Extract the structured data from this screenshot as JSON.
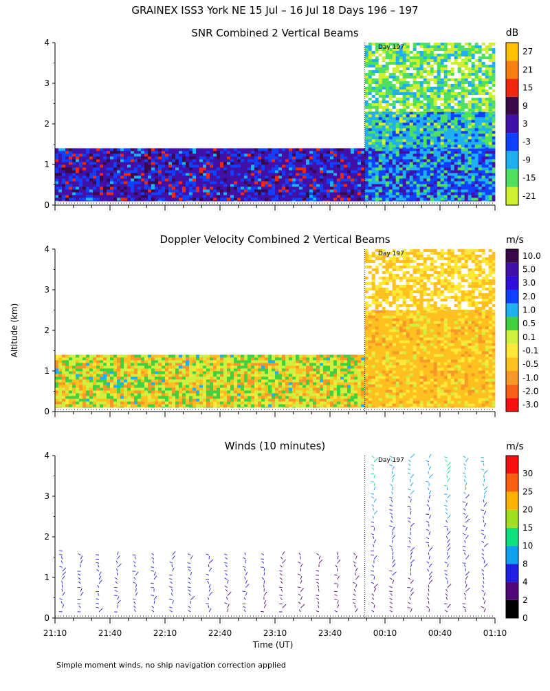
{
  "page": {
    "title": "GRAINEX ISS3 York NE  15 Jul – 16 Jul 18 Days 196 – 197",
    "ylabel": "Altitude (km)",
    "xlabel": "Time (UT)",
    "footnote": "Simple moment winds, no ship navigation correction applied",
    "day_marker": "Day 197"
  },
  "chart_data": [
    {
      "type": "heatmap",
      "title": "SNR Combined 2 Vertical Beams",
      "ylim": [
        0,
        4
      ],
      "yticks": [
        "0",
        "1",
        "2",
        "3",
        "4"
      ],
      "xticks": [],
      "colorbar": {
        "unit": "dB",
        "labels": [
          "-21",
          "-15",
          "-9",
          "-3",
          "3",
          "9",
          "15",
          "21",
          "27"
        ],
        "colors": [
          "#cff030",
          "#50e060",
          "#20b0f0",
          "#1040ff",
          "#4010a8",
          "#380848",
          "#f02810",
          "#f88010",
          "#ffc000"
        ]
      },
      "regions": [
        {
          "x_from": "21:10",
          "x_to": "23:59",
          "alt_from": 0.1,
          "alt_to": 1.4,
          "mix": {
            "#4010a8": 0.5,
            "#1040ff": 0.25,
            "#380848": 0.12,
            "#f02810": 0.08,
            "#20b0f0": 0.05
          }
        },
        {
          "x_from": "23:59",
          "x_to": "01:10",
          "alt_from": 0.1,
          "alt_to": 1.4,
          "mix": {
            "#1040ff": 0.35,
            "#20b0f0": 0.3,
            "#4010a8": 0.2,
            "#50e060": 0.15
          }
        },
        {
          "x_from": "23:59",
          "x_to": "01:10",
          "alt_from": 1.4,
          "alt_to": 2.3,
          "mix": {
            "#20b0f0": 0.45,
            "#50e060": 0.25,
            "#1040ff": 0.2,
            "#cff030": 0.1
          }
        },
        {
          "x_from": "23:59",
          "x_to": "01:10",
          "alt_from": 2.3,
          "alt_to": 4.0,
          "mix": {
            "#50e060": 0.35,
            "#cff030": 0.3,
            "#20b0f0": 0.15,
            "#ffffff": 0.2
          }
        }
      ]
    },
    {
      "type": "heatmap",
      "title": "Doppler Velocity Combined 2 Vertical Beams",
      "ylim": [
        0,
        4
      ],
      "yticks": [
        "0",
        "1",
        "2",
        "3",
        "4"
      ],
      "xticks": [],
      "colorbar": {
        "unit": "m/s",
        "labels": [
          "-3.0",
          "-2.0",
          "-1.0",
          "-0.5",
          "-0.1",
          "0.1",
          "0.5",
          "1.0",
          "2.0",
          "3.0",
          "5.0",
          "10.0"
        ],
        "colors": [
          "#f81010",
          "#f86018",
          "#f89828",
          "#ffc020",
          "#ffe838",
          "#d0f040",
          "#40d040",
          "#20b0f0",
          "#1040ff",
          "#3010d8",
          "#4010a8",
          "#380848"
        ]
      },
      "regions": [
        {
          "x_from": "21:10",
          "x_to": "23:59",
          "alt_from": 0.1,
          "alt_to": 1.4,
          "mix": {
            "#d0f040": 0.3,
            "#ffc020": 0.25,
            "#40d040": 0.2,
            "#f89828": 0.15,
            "#ffe838": 0.07,
            "#20b0f0": 0.03
          }
        },
        {
          "x_from": "23:59",
          "x_to": "01:10",
          "alt_from": 0.1,
          "alt_to": 2.5,
          "mix": {
            "#ffc020": 0.6,
            "#ffe838": 0.2,
            "#f89828": 0.12,
            "#d0f040": 0.08
          }
        },
        {
          "x_from": "23:59",
          "x_to": "01:10",
          "alt_from": 2.5,
          "alt_to": 4.0,
          "mix": {
            "#ffc020": 0.4,
            "#ffe838": 0.3,
            "#ffffff": 0.3
          }
        }
      ]
    },
    {
      "type": "wind-barbs",
      "title": "Winds (10 minutes)",
      "ylim": [
        0,
        4
      ],
      "yticks": [
        "0",
        "1",
        "2",
        "3",
        "4"
      ],
      "xticks": [
        "21:10",
        "21:40",
        "22:10",
        "22:40",
        "23:10",
        "23:40",
        "00:10",
        "00:40",
        "01:10"
      ],
      "colorbar": {
        "unit": "m/s",
        "labels": [
          "0",
          "2",
          "4",
          "8",
          "10",
          "15",
          "20",
          "25",
          "30"
        ],
        "colors": [
          "#000000",
          "#500878",
          "#2020e0",
          "#10a0f0",
          "#10e080",
          "#a0e020",
          "#ffb000",
          "#f86010",
          "#f81010"
        ]
      },
      "profiles": [
        {
          "time": "21:14",
          "top": 1.7,
          "speed_low": 5,
          "speed_high": 5
        },
        {
          "time": "21:24",
          "top": 1.6,
          "speed_low": 4,
          "speed_high": 5
        },
        {
          "time": "21:34",
          "top": 1.6,
          "speed_low": 5,
          "speed_high": 5
        },
        {
          "time": "21:44",
          "top": 1.6,
          "speed_low": 4,
          "speed_high": 5
        },
        {
          "time": "21:54",
          "top": 1.6,
          "speed_low": 4,
          "speed_high": 5
        },
        {
          "time": "22:04",
          "top": 1.6,
          "speed_low": 5,
          "speed_high": 5
        },
        {
          "time": "22:14",
          "top": 1.6,
          "speed_low": 4,
          "speed_high": 5
        },
        {
          "time": "22:24",
          "top": 1.6,
          "speed_low": 4,
          "speed_high": 5
        },
        {
          "time": "22:34",
          "top": 1.6,
          "speed_low": 4,
          "speed_high": 5
        },
        {
          "time": "22:44",
          "top": 1.6,
          "speed_low": 3,
          "speed_high": 5
        },
        {
          "time": "22:54",
          "top": 1.6,
          "speed_low": 4,
          "speed_high": 5
        },
        {
          "time": "23:04",
          "top": 1.6,
          "speed_low": 3,
          "speed_high": 5
        },
        {
          "time": "23:14",
          "top": 1.6,
          "speed_low": 3,
          "speed_high": 4
        },
        {
          "time": "23:24",
          "top": 1.6,
          "speed_low": 3,
          "speed_high": 4
        },
        {
          "time": "23:34",
          "top": 1.6,
          "speed_low": 3,
          "speed_high": 4
        },
        {
          "time": "23:44",
          "top": 1.6,
          "speed_low": 3,
          "speed_high": 4
        },
        {
          "time": "23:54",
          "top": 1.6,
          "speed_low": 3,
          "speed_high": 4
        },
        {
          "time": "00:04",
          "top": 4.0,
          "speed_low": 2,
          "speed_high": 12
        },
        {
          "time": "00:14",
          "top": 4.0,
          "speed_low": 2,
          "speed_high": 10
        },
        {
          "time": "00:24",
          "top": 4.0,
          "speed_low": 2,
          "speed_high": 10
        },
        {
          "time": "00:34",
          "top": 4.0,
          "speed_low": 2,
          "speed_high": 10
        },
        {
          "time": "00:44",
          "top": 4.0,
          "speed_low": 2,
          "speed_high": 12
        },
        {
          "time": "00:54",
          "top": 4.0,
          "speed_low": 2,
          "speed_high": 10
        },
        {
          "time": "01:04",
          "top": 4.0,
          "speed_low": 3,
          "speed_high": 10
        }
      ]
    }
  ]
}
